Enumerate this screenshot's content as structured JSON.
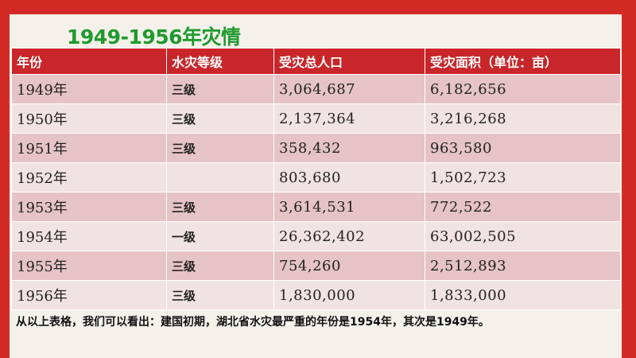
{
  "title": "1949-1956年灾情",
  "table": {
    "headers": [
      "年份",
      "水灾等级",
      "受灾总人口",
      "受灾面积（单位：亩）"
    ],
    "rows": [
      [
        "1949年",
        "三级",
        "3,064,687",
        "6,182,656"
      ],
      [
        "1950年",
        "三级",
        "2,137,364",
        "3,216,268"
      ],
      [
        "1951年",
        "三级",
        "358,432",
        "963,580"
      ],
      [
        "1952年",
        "",
        "803,680",
        "1,502,723"
      ],
      [
        "1953年",
        "三级",
        "3,614,531",
        "772,522"
      ],
      [
        "1954年",
        "一级",
        "26,362,402",
        "63,002,505"
      ],
      [
        "1955年",
        "三级",
        "754,260",
        "2,512,893"
      ],
      [
        "1956年",
        "三级",
        "1,830,000",
        "1,833,000"
      ]
    ]
  },
  "conclusion": "从以上表格，我们可以看出：建国初期，湖北省水灾最严重的年份是1954年，其次是1949年。",
  "colors": {
    "background": "#d42a25",
    "header": "#c8262a",
    "row_odd": "#e6c3c6",
    "row_even": "#f2e3e3",
    "title": "#1f9a2f"
  }
}
